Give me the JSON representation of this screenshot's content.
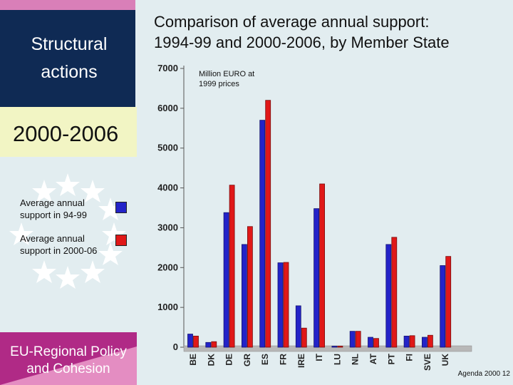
{
  "left_panel": {
    "heading_line1": "Structural",
    "heading_line2": "actions",
    "period": "2000-2006",
    "bottom_line1": "EU-Regional Policy",
    "bottom_line2": "and Cohesion"
  },
  "footer": "Agenda 2000 12",
  "colors": {
    "series1": "#2323c8",
    "series2": "#e01818",
    "navy": "#0f2a54",
    "pink": "#e48dc2",
    "yellow": "#f2f5c4"
  },
  "chart_data": {
    "type": "bar",
    "title_line1": "Comparison of average annual support:",
    "title_line2": "1994-99 and 2000-2006, by Member State",
    "unit_line1": "Million EURO at",
    "unit_line2": "1999 prices",
    "categories": [
      "BE",
      "DK",
      "DE",
      "GR",
      "ES",
      "FR",
      "IRE",
      "IT",
      "LU",
      "NL",
      "AT",
      "PT",
      "FI",
      "SVE",
      "UK"
    ],
    "series": [
      {
        "name": "Average annual support in 94-99",
        "legend_line1": "Average annual",
        "legend_line2": "support in 94-99",
        "values": [
          330,
          120,
          3380,
          2580,
          5700,
          2120,
          1040,
          3480,
          10,
          400,
          250,
          2580,
          280,
          250,
          2050
        ]
      },
      {
        "name": "Average annual support in 2000-06",
        "legend_line1": "Average annual",
        "legend_line2": "support in 2000-06",
        "values": [
          280,
          140,
          4070,
          3030,
          6200,
          2130,
          480,
          4100,
          10,
          400,
          220,
          2760,
          290,
          300,
          2280
        ]
      }
    ],
    "yticks": [
      "0",
      "1000",
      "2000",
      "3000",
      "4000",
      "5000",
      "6000",
      "7000"
    ],
    "ylim": [
      0,
      7000
    ],
    "xlabel": "",
    "ylabel": ""
  }
}
